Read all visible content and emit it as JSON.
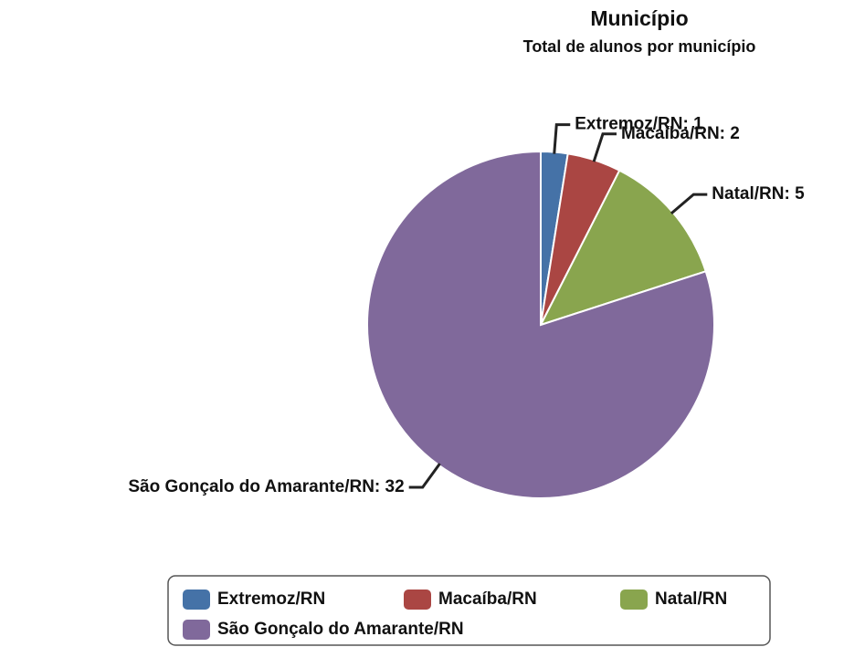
{
  "chart_data": {
    "type": "pie",
    "title": "Município",
    "subtitle": "Total de alunos por município",
    "categories": [
      "Extremoz/RN",
      "Macaíba/RN",
      "Natal/RN",
      "São Gonçalo do Amarante/RN"
    ],
    "values": [
      1,
      2,
      5,
      32
    ],
    "value_labels": [
      "Extremoz/RN: 1",
      "Macaíba/RN: 2",
      "Natal/RN: 5",
      "São Gonçalo do Amarante/RN: 32"
    ],
    "colors": [
      "#4572a7",
      "#aa4643",
      "#89a54e",
      "#80699b"
    ],
    "legend": "bottom"
  }
}
